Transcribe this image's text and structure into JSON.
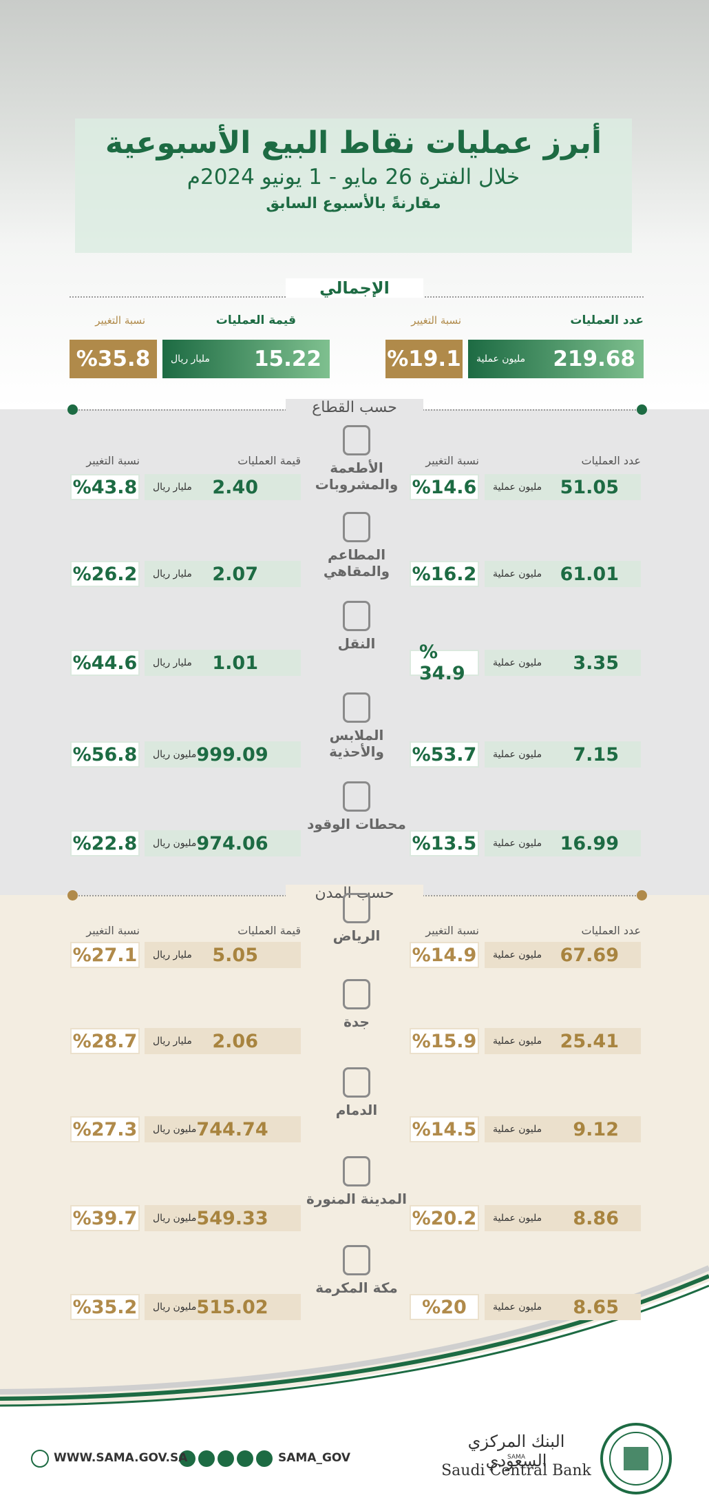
{
  "header": {
    "title": "أبرز عمليات نقاط البيع الأسبوعية",
    "subtitle": "خلال الفترة 26 مايو - 1 يونيو 2024م",
    "note": "مقارنةً بالأسبوع السابق"
  },
  "total": {
    "title": "الإجمالي",
    "count_label": "عدد العمليات",
    "count_change_label": "نسبة التغيير",
    "value_label": "قيمة العمليات",
    "value_change_label": "نسبة التغيير",
    "count": "219.68",
    "count_unit": "مليون عملية",
    "count_change": "%19.1",
    "value": "15.22",
    "value_unit": "مليار ريال",
    "value_change": "%35.8"
  },
  "sectors": {
    "title": "حسب القطاع",
    "headers": [
      "عدد العمليات",
      "نسبة التغيير",
      "قيمة العمليات",
      "نسبة التغيير"
    ],
    "rows": [
      {
        "name": "الأطعمة والمشروبات",
        "count": "51.05",
        "count_unit": "مليون عملية",
        "count_change": "%14.6",
        "value": "2.40",
        "value_unit": "مليار ريال",
        "value_change": "%43.8"
      },
      {
        "name": "المطاعم والمقاهي",
        "count": "61.01",
        "count_unit": "مليون عملية",
        "count_change": "%16.2",
        "value": "2.07",
        "value_unit": "مليار ريال",
        "value_change": "%26.2"
      },
      {
        "name": "النقل",
        "count": "3.35",
        "count_unit": "مليون عملية",
        "count_change": "% 34.9",
        "value": "1.01",
        "value_unit": "مليار ريال",
        "value_change": "%44.6"
      },
      {
        "name": "الملابس والأحذية",
        "count": "7.15",
        "count_unit": "مليون عملية",
        "count_change": "%53.7",
        "value": "999.09",
        "value_unit": "مليون ريال",
        "value_change": "%56.8"
      },
      {
        "name": "محطات الوقود",
        "count": "16.99",
        "count_unit": "مليون عملية",
        "count_change": "%13.5",
        "value": "974.06",
        "value_unit": "مليون ريال",
        "value_change": "%22.8"
      }
    ]
  },
  "cities": {
    "title": "حسب المدن",
    "headers": [
      "عدد العمليات",
      "نسبة التغيير",
      "قيمة العمليات",
      "نسبة التغيير"
    ],
    "rows": [
      {
        "name": "الرياض",
        "count": "67.69",
        "count_unit": "مليون عملية",
        "count_change": "%14.9",
        "value": "5.05",
        "value_unit": "مليار ريال",
        "value_change": "%27.1"
      },
      {
        "name": "جدة",
        "count": "25.41",
        "count_unit": "مليون عملية",
        "count_change": "%15.9",
        "value": "2.06",
        "value_unit": "مليار ريال",
        "value_change": "%28.7"
      },
      {
        "name": "الدمام",
        "count": "9.12",
        "count_unit": "مليون عملية",
        "count_change": "%14.5",
        "value": "744.74",
        "value_unit": "مليون ريال",
        "value_change": "%27.3"
      },
      {
        "name": "المدينة المنورة",
        "count": "8.86",
        "count_unit": "مليون عملية",
        "count_change": "%20.2",
        "value": "549.33",
        "value_unit": "مليون ريال",
        "value_change": "%39.7"
      },
      {
        "name": "مكة المكرمة",
        "count": "8.65",
        "count_unit": "مليون عملية",
        "count_change": "%20",
        "value": "515.02",
        "value_unit": "مليون ريال",
        "value_change": "%35.2"
      }
    ]
  },
  "footer": {
    "website": "WWW.SAMA.GOV.SA",
    "handle": "SAMA_GOV",
    "bank_ar": "البنك المركزي السعودي",
    "bank_abbr": "SAMA",
    "bank_en": "Saudi Central Bank"
  }
}
